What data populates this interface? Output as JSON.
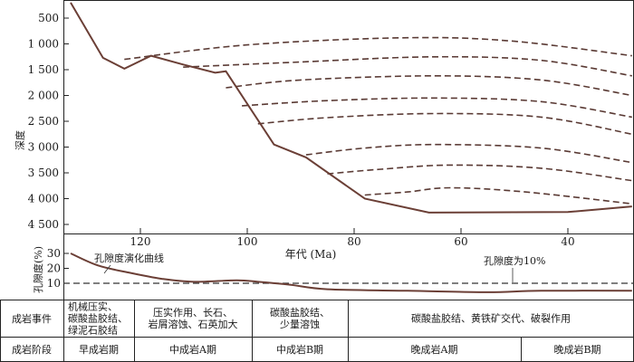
{
  "chart_data": [
    {
      "type": "line",
      "title": "",
      "ylabel": "深度",
      "yticks": [
        "500",
        "1 000",
        "1 500",
        "2 000",
        "2 500",
        "3 000",
        "3 500",
        "4 000",
        "4 500"
      ],
      "ylim": [
        4700,
        200
      ],
      "xlim": [
        135,
        28
      ],
      "burial_curve": {
        "x": [
          135,
          127,
          123,
          118,
          112,
          106,
          104,
          95,
          89,
          78,
          66,
          40,
          28
        ],
        "y": [
          200,
          1270,
          1480,
          1230,
          1400,
          1560,
          1530,
          2950,
          3200,
          4000,
          4270,
          4260,
          4150
        ]
      },
      "dashed_horizons": [
        {
          "x": [
            123,
            100,
            70,
            50,
            28
          ],
          "y": [
            1300,
            1020,
            880,
            950,
            1230
          ]
        },
        {
          "x": [
            112,
            90,
            65,
            45,
            28
          ],
          "y": [
            1450,
            1350,
            1250,
            1320,
            1620
          ]
        },
        {
          "x": [
            104,
            90,
            65,
            45,
            28
          ],
          "y": [
            1850,
            1700,
            1620,
            1700,
            2000
          ]
        },
        {
          "x": [
            101,
            85,
            65,
            45,
            28
          ],
          "y": [
            2200,
            2100,
            2050,
            2120,
            2420
          ]
        },
        {
          "x": [
            98,
            85,
            65,
            45,
            28
          ],
          "y": [
            2550,
            2430,
            2350,
            2420,
            2750
          ]
        },
        {
          "x": [
            89,
            78,
            65,
            45,
            28
          ],
          "y": [
            3150,
            3020,
            2950,
            3020,
            3300
          ]
        },
        {
          "x": [
            85,
            75,
            62,
            45,
            28
          ],
          "y": [
            3520,
            3430,
            3350,
            3410,
            3650
          ]
        },
        {
          "x": [
            78,
            70,
            62,
            48,
            28
          ],
          "y": [
            3930,
            3870,
            3790,
            3870,
            4100
          ]
        }
      ]
    },
    {
      "type": "line",
      "title": "",
      "xlabel": "年代 (Ma)",
      "xticks": [
        120,
        100,
        80,
        60,
        40
      ],
      "xlim": [
        135,
        28
      ],
      "ylabel": "孔隙度(%)",
      "yticks": [
        10,
        20,
        30
      ],
      "ylim": [
        0,
        35
      ],
      "porosity_curve": {
        "name": "孔隙度演化曲线",
        "x": [
          135,
          128,
          122,
          116,
          110,
          102,
          98,
          92,
          85,
          70,
          55,
          45,
          28
        ],
        "y": [
          30,
          22,
          17,
          13,
          11,
          12,
          11,
          9,
          6,
          5,
          4,
          5,
          5
        ]
      },
      "threshold": {
        "label": "孔隙度为10%",
        "value": 10
      }
    }
  ],
  "table": {
    "row1_header": "成岩事件",
    "row1_cells": [
      "机械压实、\n碳酸盐胶结、\n绿泥石胶结",
      "压实作用、长石、\n岩屑溶蚀、石英加大",
      "碳酸盐胶结、\n少量溶蚀",
      "碳酸盐胶结、黄铁矿交代、破裂作用"
    ],
    "row2_header": "成岩阶段",
    "row2_cells": [
      "早成岩期",
      "中成岩A期",
      "中成岩B期",
      "晚成岩A期",
      "晚成岩B期"
    ]
  }
}
